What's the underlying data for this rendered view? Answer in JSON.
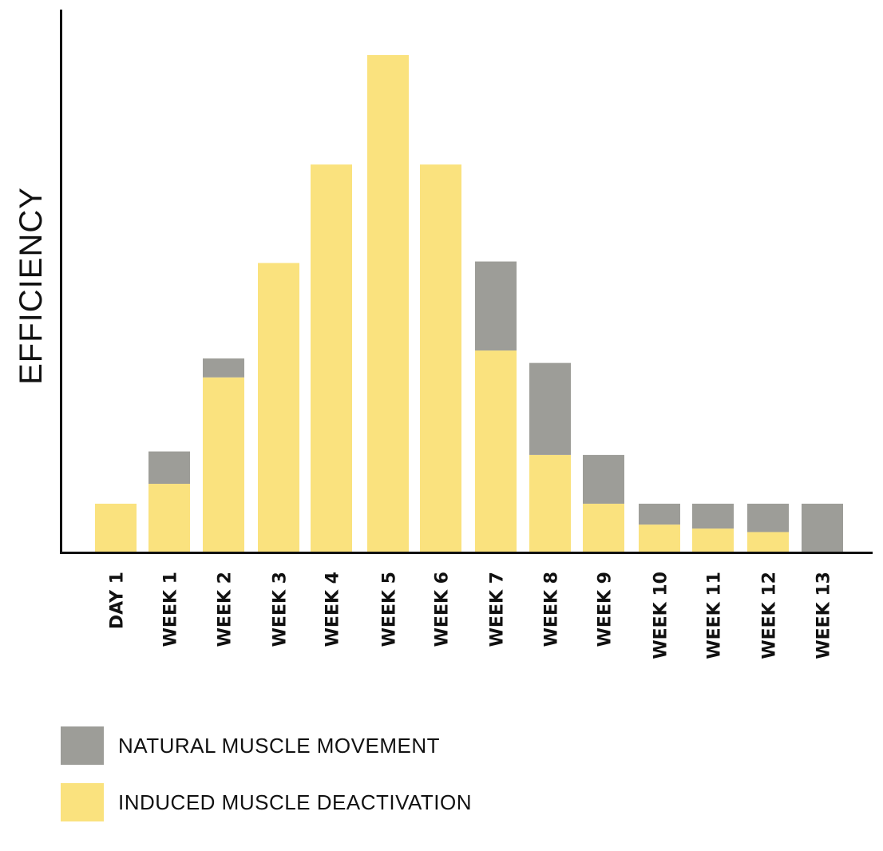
{
  "chart_data": {
    "type": "bar",
    "stacked": true,
    "ylabel": "EFFICIENCY",
    "xlabel": "",
    "ylim": [
      0,
      100
    ],
    "grid": false,
    "legend_position": "bottom-left",
    "categories": [
      "DAY 1",
      "WEEK 1",
      "WEEK 2",
      "WEEK 3",
      "WEEK 4",
      "WEEK 5",
      "WEEK 6",
      "WEEK 7",
      "WEEK 8",
      "WEEK 9",
      "WEEK 10",
      "WEEK 11",
      "WEEK 12",
      "WEEK 13"
    ],
    "series": [
      {
        "name": "INDUCED MUSCLE DEACTIVATION",
        "color": "#FAE27E",
        "values": [
          9.8,
          13.8,
          35.2,
          58.2,
          78.0,
          100.0,
          78.0,
          40.6,
          19.6,
          9.8,
          5.6,
          4.8,
          4.1,
          0
        ]
      },
      {
        "name": "NATURAL MUSCLE MOVEMENT",
        "color": "#9D9D98",
        "values": [
          0,
          6.5,
          3.8,
          0,
          0,
          0,
          0,
          17.9,
          18.5,
          9.8,
          4.2,
          5.0,
          5.7,
          9.8
        ]
      }
    ]
  },
  "legend": {
    "items": [
      {
        "label": "NATURAL MUSCLE MOVEMENT",
        "color": "#9D9D98"
      },
      {
        "label": "INDUCED MUSCLE DEACTIVATION",
        "color": "#FAE27E"
      }
    ]
  }
}
